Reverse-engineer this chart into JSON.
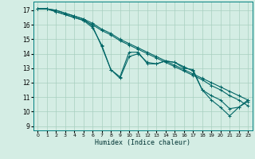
{
  "xlabel": "Humidex (Indice chaleur)",
  "xlim": [
    -0.5,
    23.5
  ],
  "ylim": [
    8.7,
    17.6
  ],
  "yticks": [
    9,
    10,
    11,
    12,
    13,
    14,
    15,
    16,
    17
  ],
  "xticks": [
    0,
    1,
    2,
    3,
    4,
    5,
    6,
    7,
    8,
    9,
    10,
    11,
    12,
    13,
    14,
    15,
    16,
    17,
    18,
    19,
    20,
    21,
    22,
    23
  ],
  "bg_color": "#d4ede4",
  "grid_color": "#a8cfc0",
  "line_color": "#006666",
  "series_line1_x": [
    0,
    1,
    2,
    3,
    4,
    5,
    6,
    7,
    8,
    9,
    10,
    11,
    12,
    13,
    14,
    15,
    16,
    17,
    18,
    19,
    20,
    21,
    22,
    23
  ],
  "series_line1_y": [
    17.1,
    17.1,
    17.0,
    16.8,
    16.6,
    16.4,
    16.1,
    15.7,
    15.4,
    15.0,
    14.7,
    14.4,
    14.1,
    13.8,
    13.5,
    13.2,
    12.9,
    12.6,
    12.3,
    12.0,
    11.7,
    11.4,
    11.1,
    10.8
  ],
  "series_line2_x": [
    0,
    1,
    2,
    3,
    4,
    5,
    6,
    7,
    8,
    9,
    10,
    11,
    12,
    13,
    14,
    15,
    16,
    17,
    18,
    19,
    20,
    21,
    22,
    23
  ],
  "series_line2_y": [
    17.1,
    17.1,
    16.9,
    16.7,
    16.5,
    16.3,
    16.0,
    15.6,
    15.3,
    14.9,
    14.6,
    14.3,
    14.0,
    13.7,
    13.4,
    13.1,
    12.8,
    12.5,
    12.2,
    11.8,
    11.5,
    11.1,
    10.8,
    10.4
  ],
  "series_line3_x": [
    0,
    1,
    2,
    3,
    4,
    5,
    6,
    7,
    8,
    9,
    10,
    11,
    12,
    13,
    14,
    15,
    16,
    17,
    18,
    19,
    20,
    21,
    22,
    23
  ],
  "series_line3_y": [
    17.1,
    17.1,
    16.9,
    16.7,
    16.5,
    16.3,
    15.8,
    14.6,
    12.9,
    12.3,
    13.8,
    14.0,
    13.4,
    13.3,
    13.5,
    13.4,
    13.1,
    12.8,
    11.5,
    11.1,
    10.8,
    10.2,
    10.3,
    10.7
  ],
  "series_line4_x": [
    0,
    1,
    2,
    3,
    4,
    5,
    6,
    7,
    8,
    9,
    10,
    11,
    12,
    13,
    14,
    15,
    16,
    17,
    18,
    19,
    20,
    21,
    22,
    23
  ],
  "series_line4_y": [
    17.1,
    17.1,
    17.0,
    16.8,
    16.6,
    16.4,
    15.9,
    14.5,
    12.9,
    12.4,
    14.1,
    14.1,
    13.3,
    13.3,
    13.5,
    13.4,
    13.0,
    12.9,
    11.5,
    10.8,
    10.3,
    9.7,
    10.3,
    10.8
  ]
}
